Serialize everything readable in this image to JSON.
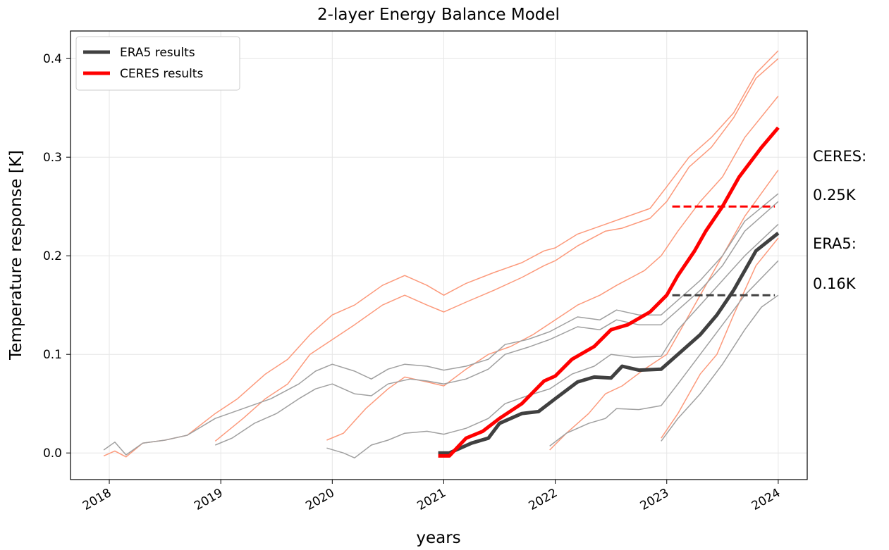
{
  "chart_data": {
    "type": "line",
    "title": "2-layer Energy Balance Model",
    "xlabel": "years",
    "ylabel": "Temperature response [K]",
    "xlim": [
      2017.652,
      2024.26
    ],
    "ylim": [
      -0.027,
      0.428
    ],
    "xticks": [
      2018,
      2019,
      2020,
      2021,
      2022,
      2023,
      2024
    ],
    "yticks": [
      {
        "value": 0,
        "label": "0.0"
      },
      0.1,
      0.2,
      0.3,
      0.4
    ],
    "grid": true,
    "legend": "upper left",
    "series": [
      {
        "color": "#fc9a7c",
        "linewidth": 1.5,
        "x": [
          2017.95,
          2018.05,
          2018.15,
          2018.3,
          2018.5,
          2018.7,
          2018.95,
          2019.15,
          2019.4,
          2019.6,
          2019.8,
          2020.0,
          2020.2,
          2020.45,
          2020.65,
          2020.85,
          2021.0,
          2021.2,
          2021.45,
          2021.7,
          2021.9,
          2022.0,
          2022.2,
          2022.45,
          2022.6,
          2022.85,
          2023.0,
          2023.2,
          2023.4,
          2023.6,
          2023.8,
          2024.0
        ],
        "values": [
          -0.003,
          0.002,
          -0.004,
          0.01,
          0.013,
          0.018,
          0.04,
          0.055,
          0.08,
          0.095,
          0.12,
          0.14,
          0.15,
          0.17,
          0.18,
          0.17,
          0.16,
          0.172,
          0.183,
          0.193,
          0.205,
          0.208,
          0.222,
          0.232,
          0.238,
          0.248,
          0.27,
          0.3,
          0.32,
          0.345,
          0.385,
          0.408
        ]
      },
      {
        "color": "#fc9a7c",
        "linewidth": 1.5,
        "x": [
          2018.95,
          2019.2,
          2019.4,
          2019.6,
          2019.8,
          2020.0,
          2020.2,
          2020.45,
          2020.65,
          2020.85,
          2021.0,
          2021.2,
          2021.45,
          2021.7,
          2021.9,
          2022.0,
          2022.2,
          2022.45,
          2022.6,
          2022.85,
          2023.0,
          2023.2,
          2023.4,
          2023.6,
          2023.8,
          2024.0
        ],
        "values": [
          0.012,
          0.035,
          0.055,
          0.07,
          0.1,
          0.115,
          0.13,
          0.15,
          0.16,
          0.15,
          0.143,
          0.153,
          0.165,
          0.178,
          0.19,
          0.195,
          0.21,
          0.225,
          0.228,
          0.238,
          0.255,
          0.29,
          0.31,
          0.34,
          0.38,
          0.4
        ]
      },
      {
        "color": "#fc9a7c",
        "linewidth": 1.5,
        "x": [
          2019.95,
          2020.1,
          2020.3,
          2020.5,
          2020.65,
          2020.85,
          2021.0,
          2021.2,
          2021.4,
          2021.6,
          2021.8,
          2022.0,
          2022.2,
          2022.4,
          2022.55,
          2022.8,
          2022.95,
          2023.1,
          2023.3,
          2023.5,
          2023.7,
          2024.0
        ],
        "values": [
          0.013,
          0.02,
          0.045,
          0.065,
          0.077,
          0.072,
          0.068,
          0.085,
          0.1,
          0.108,
          0.12,
          0.135,
          0.15,
          0.16,
          0.17,
          0.185,
          0.2,
          0.225,
          0.255,
          0.28,
          0.32,
          0.362
        ]
      },
      {
        "color": "#fc9a7c",
        "linewidth": 1.5,
        "x": [
          2021.95,
          2022.1,
          2022.3,
          2022.45,
          2022.6,
          2022.8,
          2023.0,
          2023.15,
          2023.3,
          2023.5,
          2023.7,
          2024.0
        ],
        "values": [
          0.003,
          0.02,
          0.04,
          0.06,
          0.068,
          0.085,
          0.1,
          0.13,
          0.16,
          0.2,
          0.24,
          0.287
        ]
      },
      {
        "color": "#fc9a7c",
        "linewidth": 1.5,
        "x": [
          2022.95,
          2023.1,
          2023.3,
          2023.45,
          2023.6,
          2023.8,
          2024.0
        ],
        "values": [
          0.015,
          0.04,
          0.08,
          0.1,
          0.14,
          0.19,
          0.218
        ]
      },
      {
        "color": "#a0a0a0",
        "linewidth": 1.5,
        "x": [
          2017.95,
          2018.05,
          2018.15,
          2018.3,
          2018.5,
          2018.7,
          2018.95,
          2019.2,
          2019.45,
          2019.7,
          2019.85,
          2020.0,
          2020.2,
          2020.35,
          2020.5,
          2020.65,
          2020.85,
          2021.0,
          2021.2,
          2021.4,
          2021.55,
          2021.75,
          2021.95,
          2022.2,
          2022.4,
          2022.55,
          2022.75,
          2022.95,
          2023.1,
          2023.3,
          2023.5,
          2023.7,
          2024.0
        ],
        "values": [
          0.003,
          0.011,
          -0.002,
          0.01,
          0.013,
          0.018,
          0.035,
          0.045,
          0.055,
          0.07,
          0.083,
          0.09,
          0.083,
          0.075,
          0.085,
          0.09,
          0.088,
          0.084,
          0.088,
          0.095,
          0.11,
          0.115,
          0.123,
          0.138,
          0.135,
          0.145,
          0.14,
          0.14,
          0.155,
          0.175,
          0.2,
          0.235,
          0.263
        ]
      },
      {
        "color": "#a0a0a0",
        "linewidth": 1.5,
        "x": [
          2018.95,
          2019.1,
          2019.3,
          2019.5,
          2019.7,
          2019.85,
          2020.0,
          2020.2,
          2020.35,
          2020.5,
          2020.7,
          2020.85,
          2021.0,
          2021.2,
          2021.4,
          2021.55,
          2021.75,
          2021.95,
          2022.2,
          2022.4,
          2022.55,
          2022.75,
          2022.95,
          2023.1,
          2023.3,
          2023.5,
          2023.7,
          2024.0
        ],
        "values": [
          0.008,
          0.015,
          0.03,
          0.04,
          0.055,
          0.065,
          0.07,
          0.06,
          0.058,
          0.07,
          0.075,
          0.073,
          0.07,
          0.075,
          0.085,
          0.1,
          0.107,
          0.115,
          0.128,
          0.125,
          0.135,
          0.13,
          0.13,
          0.145,
          0.165,
          0.19,
          0.225,
          0.255
        ]
      },
      {
        "color": "#a0a0a0",
        "linewidth": 1.5,
        "x": [
          2019.95,
          2020.1,
          2020.2,
          2020.35,
          2020.5,
          2020.65,
          2020.85,
          2021.0,
          2021.2,
          2021.4,
          2021.55,
          2021.75,
          2021.95,
          2022.15,
          2022.35,
          2022.5,
          2022.7,
          2022.95,
          2023.1,
          2023.3,
          2023.5,
          2023.7,
          2024.0
        ],
        "values": [
          0.005,
          0.0,
          -0.005,
          0.008,
          0.013,
          0.02,
          0.022,
          0.019,
          0.025,
          0.035,
          0.05,
          0.058,
          0.065,
          0.08,
          0.088,
          0.1,
          0.097,
          0.098,
          0.125,
          0.15,
          0.175,
          0.2,
          0.232
        ]
      },
      {
        "color": "#a0a0a0",
        "linewidth": 1.5,
        "x": [
          2021.95,
          2022.1,
          2022.3,
          2022.45,
          2022.55,
          2022.75,
          2022.95,
          2023.1,
          2023.3,
          2023.5,
          2023.7,
          2024.0
        ],
        "values": [
          0.007,
          0.02,
          0.03,
          0.035,
          0.045,
          0.044,
          0.048,
          0.07,
          0.1,
          0.13,
          0.16,
          0.195
        ]
      },
      {
        "color": "#a0a0a0",
        "linewidth": 1.5,
        "x": [
          2022.95,
          2023.1,
          2023.3,
          2023.5,
          2023.7,
          2023.85,
          2024.0
        ],
        "values": [
          0.012,
          0.035,
          0.06,
          0.09,
          0.125,
          0.148,
          0.16
        ]
      },
      {
        "color": "#ff0000",
        "linewidth": 3,
        "dash": true,
        "x": [
          2023.05,
          2023.97
        ],
        "values": [
          0.25,
          0.25
        ]
      },
      {
        "color": "#404040",
        "linewidth": 3,
        "dash": true,
        "x": [
          2023.05,
          2023.97
        ],
        "values": [
          0.16,
          0.16
        ]
      },
      {
        "name": "ERA5 results",
        "color": "#404040",
        "linewidth": 5,
        "x": [
          2020.95,
          2021.05,
          2021.25,
          2021.4,
          2021.5,
          2021.7,
          2021.85,
          2022.0,
          2022.2,
          2022.35,
          2022.5,
          2022.6,
          2022.75,
          2022.95,
          2023.1,
          2023.3,
          2023.45,
          2023.6,
          2023.8,
          2024.0
        ],
        "values": [
          0.0,
          0.0,
          0.01,
          0.015,
          0.03,
          0.04,
          0.042,
          0.055,
          0.072,
          0.077,
          0.076,
          0.088,
          0.084,
          0.085,
          0.1,
          0.12,
          0.14,
          0.165,
          0.205,
          0.223
        ]
      },
      {
        "name": "CERES results",
        "color": "#ff0000",
        "linewidth": 5,
        "x": [
          2020.95,
          2021.05,
          2021.2,
          2021.35,
          2021.5,
          2021.7,
          2021.9,
          2022.0,
          2022.15,
          2022.35,
          2022.5,
          2022.65,
          2022.85,
          2023.0,
          2023.1,
          2023.25,
          2023.35,
          2023.5,
          2023.65,
          2023.85,
          2024.0
        ],
        "values": [
          -0.003,
          -0.003,
          0.015,
          0.022,
          0.035,
          0.05,
          0.073,
          0.078,
          0.095,
          0.108,
          0.125,
          0.13,
          0.143,
          0.16,
          0.18,
          0.205,
          0.225,
          0.25,
          0.28,
          0.31,
          0.33
        ]
      }
    ],
    "annotations": [
      {
        "text": "CERES:",
        "color": "#ff0000"
      },
      {
        "text": "0.25K",
        "color": "#ff0000"
      },
      {
        "text": "ERA5:",
        "color": "#404040"
      },
      {
        "text": "0.16K",
        "color": "#404040"
      }
    ]
  }
}
